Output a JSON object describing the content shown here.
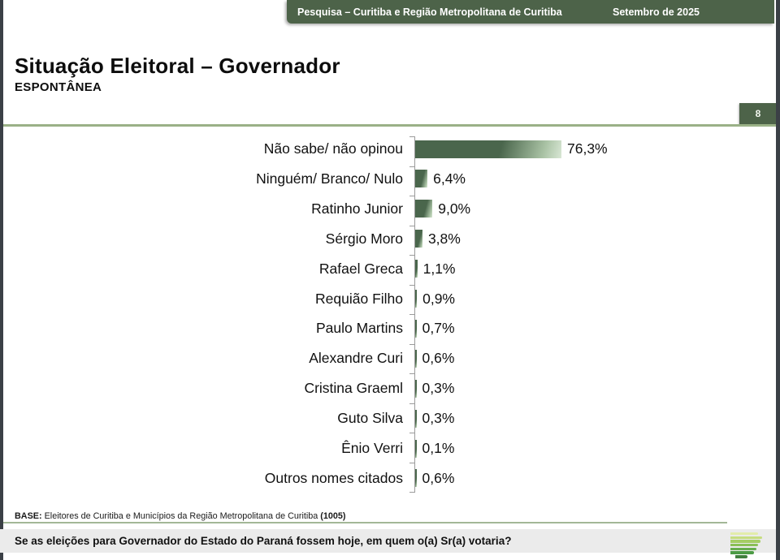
{
  "header": {
    "left": "Pesquisa – Curitiba e Região Metropolitana de Curitiba",
    "right": "Setembro de 2025"
  },
  "title": "Situação Eleitoral – Governador",
  "subtitle": "ESPONTÂNEA",
  "page_number": "8",
  "chart_data": {
    "type": "bar",
    "orientation": "horizontal",
    "title": "Situação Eleitoral – Governador",
    "subtitle": "ESPONTÂNEA",
    "categories": [
      "Não sabe/ não opinou",
      "Ninguém/ Branco/ Nulo",
      "Ratinho Junior",
      "Sérgio Moro",
      "Rafael Greca",
      "Requião Filho",
      "Paulo Martins",
      "Alexandre Curi",
      "Cristina Graeml",
      "Guto Silva",
      "Ênio Verri",
      "Outros nomes citados"
    ],
    "values": [
      76.3,
      6.4,
      9.0,
      3.8,
      1.1,
      0.9,
      0.7,
      0.6,
      0.3,
      0.3,
      0.1,
      0.6
    ],
    "value_labels": [
      "76,3%",
      "6,4%",
      "9,0%",
      "3,8%",
      "1,1%",
      "0,9%",
      "0,7%",
      "0,6%",
      "0,3%",
      "0,3%",
      "0,1%",
      "0,6%"
    ],
    "xlim": [
      0,
      100
    ],
    "grid": false,
    "legend": null,
    "bar_colors": {
      "dark": "#4a664c",
      "light": "#d9e7d5"
    }
  },
  "footer": {
    "base_label": "BASE:",
    "base_text": " Eleitores de Curitiba e Municípios da Região Metropolitana de Curitiba ",
    "base_count": "(1005)",
    "question": "Se as eleições para Governador do Estado do Paraná fossem hoje, em quem o(a) Sr(a) votaria?"
  },
  "colors": {
    "header_green": "#4d6349",
    "rule_green": "#9ab187",
    "bar_dark": "#4a664c",
    "bar_light": "#d9e7d5",
    "frame_dark": "#3b4046",
    "question_bg": "#ebebeb"
  },
  "logo": {
    "name": "stacked-green-bars-logo",
    "bars": [
      {
        "width": 34,
        "offset": 0,
        "color": "#e3ecab"
      },
      {
        "width": 39,
        "offset": 0,
        "color": "#c6dd7f"
      },
      {
        "width": 37,
        "offset": 0,
        "color": "#a5cd63"
      },
      {
        "width": 34,
        "offset": 0,
        "color": "#8abf55"
      },
      {
        "width": 32,
        "offset": 0,
        "color": "#67ad4c"
      },
      {
        "width": 29,
        "offset": 0,
        "color": "#4c9b45"
      },
      {
        "width": 15,
        "offset": 6,
        "color": "#417f3d"
      }
    ]
  }
}
